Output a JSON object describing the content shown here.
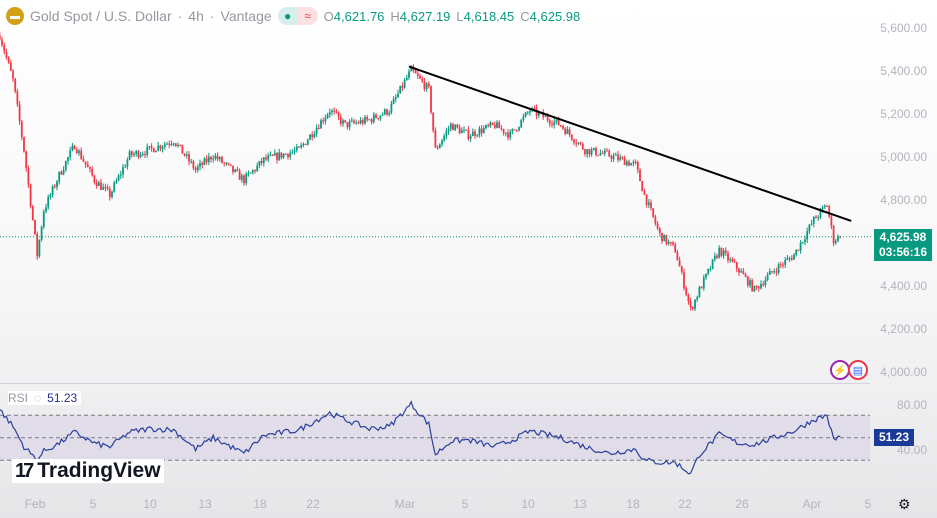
{
  "header": {
    "symbol": "Gold Spot / U.S. Dollar",
    "interval": "4h",
    "source": "Vantage",
    "separator": "·",
    "market_status": "≈",
    "ohlc": {
      "o_label": "O",
      "o": "4,621.76",
      "h_label": "H",
      "h": "4,627.19",
      "l_label": "L",
      "l": "4,618.45",
      "c_label": "C",
      "c": "4,625.98"
    }
  },
  "price_axis": {
    "labels": [
      "5,600.00",
      "5,400.00",
      "5,200.00",
      "5,000.00",
      "4,800.00",
      "4,400.00",
      "4,200.00",
      "4,000.00"
    ],
    "last_price": "4,625.98",
    "countdown": "03:56:16"
  },
  "rsi": {
    "label": "RSI",
    "value": "51.23",
    "axis_labels": [
      "80.00",
      "40.00"
    ]
  },
  "watermark": "TradingView",
  "x_axis": {
    "labels": [
      "Feb",
      "5",
      "10",
      "13",
      "18",
      "22",
      "Mar",
      "5",
      "10",
      "13",
      "18",
      "22",
      "26",
      "Apr",
      "5"
    ]
  },
  "colors": {
    "up": "#089981",
    "down": "#f23645",
    "rsi_line": "#2a3f9e",
    "trendline": "#000000"
  },
  "icons": {
    "gold": "gold-bars-icon",
    "flash": "lightning-icon",
    "flag": "us-flag-icon",
    "settings": "gear-icon"
  },
  "chart_data": {
    "type": "candlestick",
    "interval": "4h",
    "y_range": [
      4000,
      5600
    ],
    "trendline": [
      {
        "date": "03-01 08",
        "price": 5420
      },
      {
        "date": "04-03 20",
        "price": 4700
      }
    ],
    "close_path": [
      [
        "01-29 08",
        5567
      ],
      [
        "01-30 08",
        5357
      ],
      [
        "01-31 04",
        5031
      ],
      [
        "02-01 04",
        4541
      ],
      [
        "02-01 16",
        4751
      ],
      [
        "02-02 20",
        4914
      ],
      [
        "02-04 00",
        5054
      ],
      [
        "02-05 12",
        4891
      ],
      [
        "02-06 16",
        4821
      ],
      [
        "02-08 04",
        5007
      ],
      [
        "02-09 16",
        5031
      ],
      [
        "02-11 12",
        5077
      ],
      [
        "02-13 04",
        4938
      ],
      [
        "02-14 12",
        5007
      ],
      [
        "02-16 20",
        4891
      ],
      [
        "02-18 08",
        4984
      ],
      [
        "02-21 00",
        5031
      ],
      [
        "02-23 08",
        5217
      ],
      [
        "02-24 12",
        5147
      ],
      [
        "02-26 08",
        5171
      ],
      [
        "02-27 20",
        5217
      ],
      [
        "03-01 12",
        5404
      ],
      [
        "03-02 20",
        5311
      ],
      [
        "03-03 08",
        5031
      ],
      [
        "03-04 12",
        5147
      ],
      [
        "03-05 20",
        5101
      ],
      [
        "03-07 20",
        5147
      ],
      [
        "03-09 00",
        5101
      ],
      [
        "03-10 12",
        5217
      ],
      [
        "03-12 20",
        5147
      ],
      [
        "03-14 16",
        5031
      ],
      [
        "03-16 12",
        5007
      ],
      [
        "03-18 12",
        4961
      ],
      [
        "03-19 04",
        4821
      ],
      [
        "03-20 08",
        4635
      ],
      [
        "03-21 12",
        4565
      ],
      [
        "03-22 16",
        4285
      ],
      [
        "03-23 08",
        4378
      ],
      [
        "03-24 20",
        4565
      ],
      [
        "03-26 08",
        4471
      ],
      [
        "03-27 12",
        4378
      ],
      [
        "03-29 00",
        4471
      ],
      [
        "03-30 12",
        4541
      ],
      [
        "04-01 00",
        4705
      ],
      [
        "04-02 00",
        4775
      ],
      [
        "04-02 12",
        4611
      ],
      [
        "04-03 00",
        4625.98
      ]
    ],
    "rsi_path": [
      75,
      60,
      42,
      30,
      38,
      45,
      55,
      45,
      42,
      55,
      58,
      57,
      40,
      50,
      36,
      52,
      57,
      72,
      66,
      58,
      60,
      80,
      62,
      35,
      47,
      48,
      42,
      47,
      56,
      50,
      42,
      36,
      40,
      30,
      28,
      28,
      18,
      35,
      53,
      45,
      44,
      50,
      56,
      66,
      70,
      48,
      51.23
    ],
    "rsi_levels": [
      70,
      50,
      30
    ],
    "rsi_range": [
      0,
      100
    ]
  }
}
